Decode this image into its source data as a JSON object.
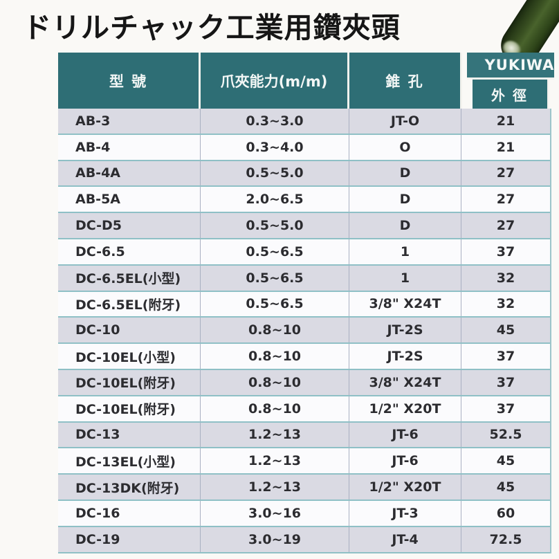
{
  "page": {
    "title": "ドリルチャック工業用鑽夾頭"
  },
  "photo": {
    "description": "green drill chuck arbor, diagonal, cropped at top-right corner"
  },
  "colors": {
    "header_teal": "#2e6e75",
    "header_teal_light": "#35747b",
    "row_alt": "#dadae3",
    "row_white": "#fbfbfd",
    "row_divider": "#8fc0c6",
    "cell_divider": "#a9b0c2",
    "text": "#2c2c30",
    "drill_green": "#3a5122"
  },
  "table": {
    "headers": {
      "model": "型 號",
      "capacity": "爪夾能力(m/m)",
      "taper": "錐 孔",
      "brand": "YUKIWA",
      "outer_diameter": "外 徑"
    },
    "rows": [
      {
        "model": "AB-3",
        "capacity": "0.3~3.0",
        "taper": "JT-O",
        "od": "21"
      },
      {
        "model": "AB-4",
        "capacity": "0.3~4.0",
        "taper": "O",
        "od": "21"
      },
      {
        "model": "AB-4A",
        "capacity": "0.5~5.0",
        "taper": "D",
        "od": "27"
      },
      {
        "model": "AB-5A",
        "capacity": "2.0~6.5",
        "taper": "D",
        "od": "27"
      },
      {
        "model": "DC-D5",
        "capacity": "0.5~5.0",
        "taper": "D",
        "od": "27"
      },
      {
        "model": "DC-6.5",
        "capacity": "0.5~6.5",
        "taper": "1",
        "od": "37"
      },
      {
        "model": "DC-6.5EL(小型)",
        "capacity": "0.5~6.5",
        "taper": "1",
        "od": "32"
      },
      {
        "model": "DC-6.5EL(附牙)",
        "capacity": "0.5~6.5",
        "taper": "3/8\" X24T",
        "od": "32"
      },
      {
        "model": "DC-10",
        "capacity": "0.8~10",
        "taper": "JT-2S",
        "od": "45"
      },
      {
        "model": "DC-10EL(小型)",
        "capacity": "0.8~10",
        "taper": "JT-2S",
        "od": "37"
      },
      {
        "model": "DC-10EL(附牙)",
        "capacity": "0.8~10",
        "taper": "3/8\" X24T",
        "od": "37"
      },
      {
        "model": "DC-10EL(附牙)",
        "capacity": "0.8~10",
        "taper": "1/2\" X20T",
        "od": "37"
      },
      {
        "model": "DC-13",
        "capacity": "1.2~13",
        "taper": "JT-6",
        "od": "52.5"
      },
      {
        "model": "DC-13EL(小型)",
        "capacity": "1.2~13",
        "taper": "JT-6",
        "od": "45"
      },
      {
        "model": "DC-13DK(附牙)",
        "capacity": "1.2~13",
        "taper": "1/2\" X20T",
        "od": "45"
      },
      {
        "model": "DC-16",
        "capacity": "3.0~16",
        "taper": "JT-3",
        "od": "60"
      },
      {
        "model": "DC-19",
        "capacity": "3.0~19",
        "taper": "JT-4",
        "od": "72.5"
      }
    ]
  }
}
